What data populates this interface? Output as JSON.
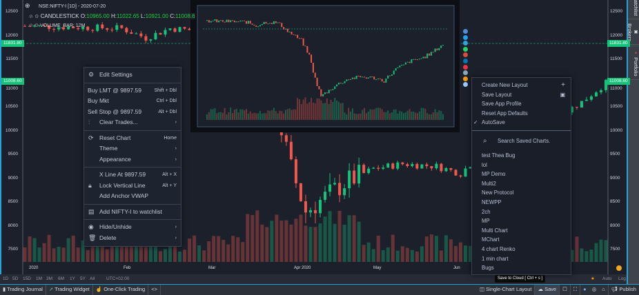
{
  "legend": {
    "symbol": "NSE:NIFTY-I [1D] - 2020-07-20",
    "series_name": "CANDLESTICK",
    "o_label": "O:",
    "o": "10965.00",
    "h_label": "H:",
    "h": "11022.65",
    "l_label": "L:",
    "l": "10921.00",
    "c_label": "C:",
    "c": "11008.6",
    "volume": "VOLUME_BAR: 12M"
  },
  "y_axis": [
    "12500",
    "12000",
    "11500",
    "11000",
    "10500",
    "10000",
    "9500",
    "9000",
    "8500",
    "8000",
    "7500"
  ],
  "x_axis": [
    "2020",
    "Feb",
    "Mar",
    "Apr 2020",
    "May",
    "Jun"
  ],
  "price_tags": {
    "dashed_line": "11831.80",
    "last": "11008.60"
  },
  "colors": {
    "up": "#14c27a",
    "down": "#f0584d",
    "accent": "#27a6d6",
    "background": "#1c202b"
  },
  "context_menu": {
    "edit_settings": "Edit Settings",
    "buy_lmt": "Buy LMT @ 9897.59",
    "buy_lmt_sc": "Shift + Dbl",
    "buy_mkt": "Buy Mkt",
    "buy_mkt_sc": "Ctrl + Dbl",
    "sell_stop": "Sell Stop @ 9897.59",
    "sell_stop_sc": "Alt + Dbl",
    "clear_trades": "Clear Trades...",
    "reset_chart": "Reset Chart",
    "reset_chart_sc": "Home",
    "theme": "Theme",
    "appearance": "Appearance",
    "x_line": "X Line At 9897.59",
    "x_line_sc": "Alt + X",
    "lock_vline": "Lock Vertical Line",
    "lock_vline_sc": "Alt + Y",
    "anchor_vwap": "Add Anchor VWAP",
    "add_watchlist": "Add NIFTY-I to watchlist",
    "hide_unhide": "Hide/Unhide",
    "delete": "Delete"
  },
  "layout_menu": {
    "create": "Create New Layout",
    "save": "Save Layout",
    "save_profile": "Save App Profile",
    "reset_defaults": "Reset App Defaults",
    "autosave": "AutoSave",
    "search_placeholder": "Search Saved Charts.",
    "saved_charts": [
      "test Thea Bug",
      "lol",
      "MP Demo",
      "Multi2",
      "New Protocol",
      "NEWPP",
      "2ch",
      "MP",
      "Multi Chart",
      "MChart",
      "4 chart Renko",
      "1 min chart",
      "Bugs"
    ]
  },
  "timeframes": [
    "1D",
    "5D",
    "15D",
    "1M",
    "3M",
    "6M",
    "1Y",
    "5Y",
    "All"
  ],
  "timezone": "UTC+02:00",
  "scale_opts": {
    "auto": "Auto",
    "log": "Log"
  },
  "toolbar": {
    "trading_journal": "Trading Journal",
    "trading_widget": "Trading Widget",
    "one_click": "One-Click Trading",
    "code": "<>",
    "single_layout": "Single-Chart Layout",
    "save": "Save",
    "publish": "Publish",
    "tooltip": "Save to Cloud [ Ctrl + s ]"
  },
  "sidebar": [
    "Watchlist",
    "Brokers",
    "Portfolio"
  ]
}
